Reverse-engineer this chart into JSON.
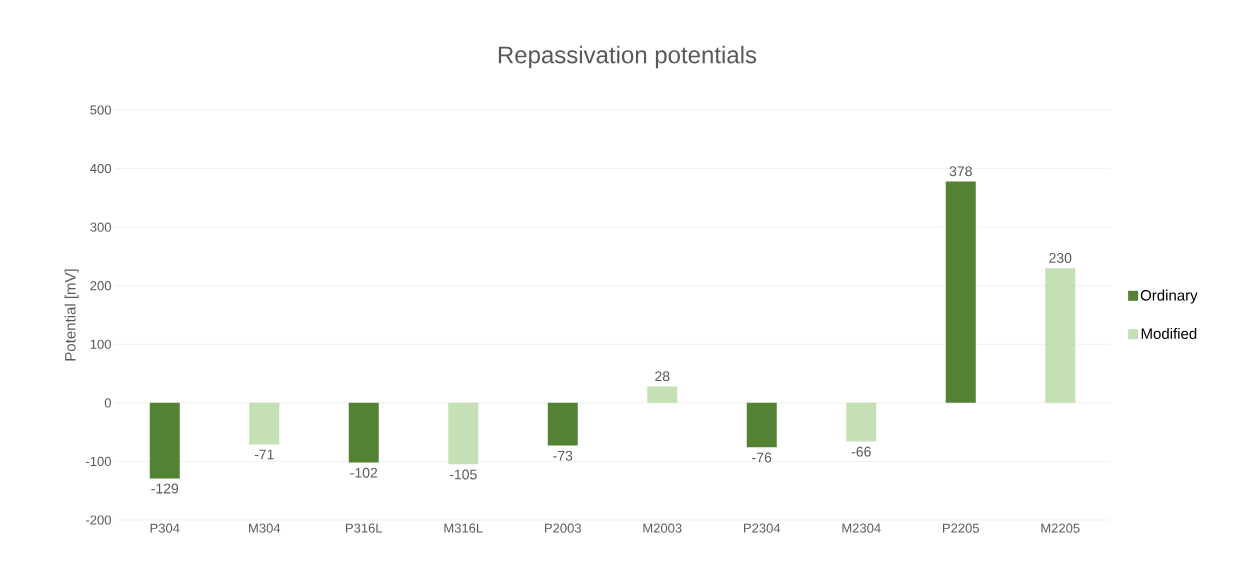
{
  "chart_data": {
    "type": "bar",
    "title": "Repassivation potentials",
    "ylabel": "Potential [mV]",
    "categories": [
      "P304",
      "M304",
      "P316L",
      "M316L",
      "P2003",
      "M2003",
      "P2304",
      "M2304",
      "P2205",
      "M2205"
    ],
    "series": [
      {
        "name": "Ordinary",
        "color": "#548235",
        "values": [
          -129,
          null,
          -102,
          null,
          -73,
          null,
          -76,
          null,
          378,
          null
        ]
      },
      {
        "name": "Modified",
        "color": "#c5e0b4",
        "values": [
          null,
          -71,
          null,
          -105,
          null,
          28,
          null,
          -66,
          null,
          230
        ]
      }
    ],
    "ylim": [
      -200,
      500
    ],
    "yticks": [
      -200,
      -100,
      0,
      100,
      200,
      300,
      400,
      500
    ],
    "grid": "y",
    "legend": "right",
    "data_labels": true
  }
}
